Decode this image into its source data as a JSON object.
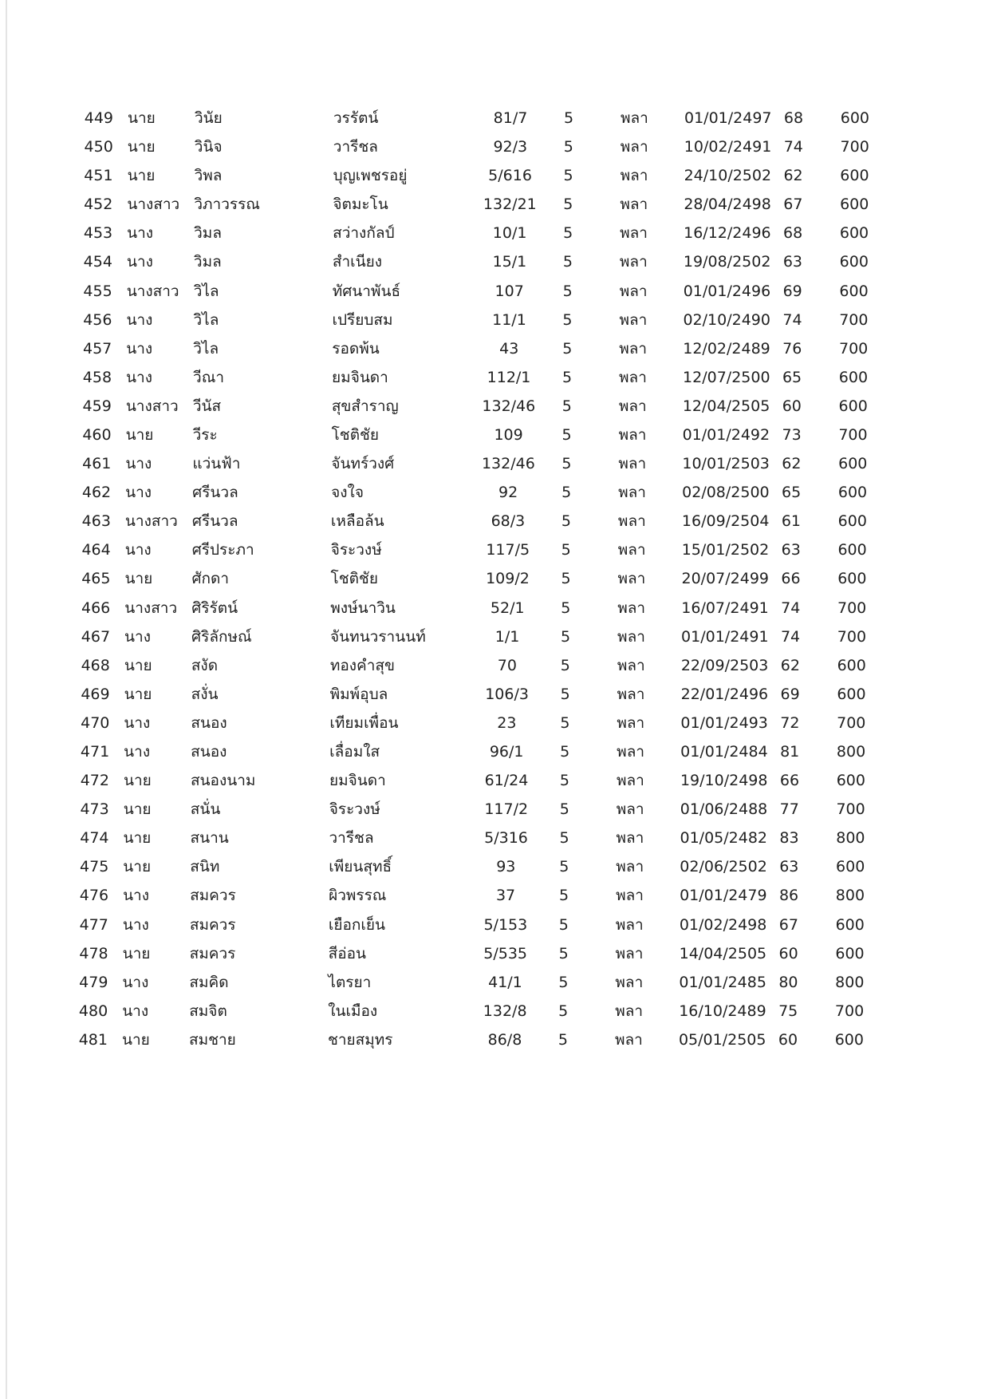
{
  "table": {
    "rows": [
      [
        "449",
        "นาย",
        "วินัย",
        "วรรัตน์",
        "81/7",
        "5",
        "พลา",
        "01/01/2497",
        "68",
        "600"
      ],
      [
        "450",
        "นาย",
        "วินิจ",
        "วารีชล",
        "92/3",
        "5",
        "พลา",
        "10/02/2491",
        "74",
        "700"
      ],
      [
        "451",
        "นาย",
        "วิพล",
        "บุญเพชรอยู่",
        "5/616",
        "5",
        "พลา",
        "24/10/2502",
        "62",
        "600"
      ],
      [
        "452",
        "นางสาว",
        "วิภาวรรณ",
        "จิตมะโน",
        "132/21",
        "5",
        "พลา",
        "28/04/2498",
        "67",
        "600"
      ],
      [
        "453",
        "นาง",
        "วิมล",
        "สว่างกัลป์",
        "10/1",
        "5",
        "พลา",
        "16/12/2496",
        "68",
        "600"
      ],
      [
        "454",
        "นาง",
        "วิมล",
        "สำเนียง",
        "15/1",
        "5",
        "พลา",
        "19/08/2502",
        "63",
        "600"
      ],
      [
        "455",
        "นางสาว",
        "วิไล",
        "ทัศนาพันธ์",
        "107",
        "5",
        "พลา",
        "01/01/2496",
        "69",
        "600"
      ],
      [
        "456",
        "นาง",
        "วิไล",
        "เปรียบสม",
        "11/1",
        "5",
        "พลา",
        "02/10/2490",
        "74",
        "700"
      ],
      [
        "457",
        "นาง",
        "วิไล",
        "รอดพ้น",
        "43",
        "5",
        "พลา",
        "12/02/2489",
        "76",
        "700"
      ],
      [
        "458",
        "นาง",
        "วีณา",
        "ยมจินดา",
        "112/1",
        "5",
        "พลา",
        "12/07/2500",
        "65",
        "600"
      ],
      [
        "459",
        "นางสาว",
        "วีนัส",
        "สุขสำราญ",
        "132/46",
        "5",
        "พลา",
        "12/04/2505",
        "60",
        "600"
      ],
      [
        "460",
        "นาย",
        "วีระ",
        "โชติชัย",
        "109",
        "5",
        "พลา",
        "01/01/2492",
        "73",
        "700"
      ],
      [
        "461",
        "นาง",
        "แว่นฟ้า",
        "จันทร์วงศ์",
        "132/46",
        "5",
        "พลา",
        "10/01/2503",
        "62",
        "600"
      ],
      [
        "462",
        "นาง",
        "ศรีนวล",
        "จงใจ",
        "92",
        "5",
        "พลา",
        "02/08/2500",
        "65",
        "600"
      ],
      [
        "463",
        "นางสาว",
        "ศรีนวล",
        "เหลือล้น",
        "68/3",
        "5",
        "พลา",
        "16/09/2504",
        "61",
        "600"
      ],
      [
        "464",
        "นาง",
        "ศรีประภา",
        "จิระวงษ์",
        "117/5",
        "5",
        "พลา",
        "15/01/2502",
        "63",
        "600"
      ],
      [
        "465",
        "นาย",
        "ศักดา",
        "โชติชัย",
        "109/2",
        "5",
        "พลา",
        "20/07/2499",
        "66",
        "600"
      ],
      [
        "466",
        "นางสาว",
        "ศิริรัตน์",
        "พงษ์นาวิน",
        "52/1",
        "5",
        "พลา",
        "16/07/2491",
        "74",
        "700"
      ],
      [
        "467",
        "นาง",
        "ศิริลักษณ์",
        "จันทนวรานนท์",
        "1/1",
        "5",
        "พลา",
        "01/01/2491",
        "74",
        "700"
      ],
      [
        "468",
        "นาย",
        "สงัด",
        "ทองคำสุข",
        "70",
        "5",
        "พลา",
        "22/09/2503",
        "62",
        "600"
      ],
      [
        "469",
        "นาย",
        "สงั่น",
        "พิมพ์อุบล",
        "106/3",
        "5",
        "พลา",
        "22/01/2496",
        "69",
        "600"
      ],
      [
        "470",
        "นาง",
        "สนอง",
        "เทียมเพื่อน",
        "23",
        "5",
        "พลา",
        "01/01/2493",
        "72",
        "700"
      ],
      [
        "471",
        "นาง",
        "สนอง",
        "เลื่อมใส",
        "96/1",
        "5",
        "พลา",
        "01/01/2484",
        "81",
        "800"
      ],
      [
        "472",
        "นาย",
        "สนองนาม",
        "ยมจินดา",
        "61/24",
        "5",
        "พลา",
        "19/10/2498",
        "66",
        "600"
      ],
      [
        "473",
        "นาย",
        "สนั่น",
        "จิระวงษ์",
        "117/2",
        "5",
        "พลา",
        "01/06/2488",
        "77",
        "700"
      ],
      [
        "474",
        "นาย",
        "สนาน",
        "วารีชล",
        "5/316",
        "5",
        "พลา",
        "01/05/2482",
        "83",
        "800"
      ],
      [
        "475",
        "นาย",
        "สนิท",
        "เพียนสุทธิ์",
        "93",
        "5",
        "พลา",
        "02/06/2502",
        "63",
        "600"
      ],
      [
        "476",
        "นาง",
        "สมควร",
        "ผิวพรรณ",
        "37",
        "5",
        "พลา",
        "01/01/2479",
        "86",
        "800"
      ],
      [
        "477",
        "นาง",
        "สมควร",
        "เยือกเย็น",
        "5/153",
        "5",
        "พลา",
        "01/02/2498",
        "67",
        "600"
      ],
      [
        "478",
        "นาย",
        "สมควร",
        "สีอ่อน",
        "5/535",
        "5",
        "พลา",
        "14/04/2505",
        "60",
        "600"
      ],
      [
        "479",
        "นาง",
        "สมคิด",
        "ไตรยา",
        "41/1",
        "5",
        "พลา",
        "01/01/2485",
        "80",
        "800"
      ],
      [
        "480",
        "นาง",
        "สมจิต",
        "ในเมือง",
        "132/8",
        "5",
        "พลา",
        "16/10/2489",
        "75",
        "700"
      ],
      [
        "481",
        "นาย",
        "สมชาย",
        "ชายสมุทร",
        "86/8",
        "5",
        "พลา",
        "05/01/2505",
        "60",
        "600"
      ]
    ]
  }
}
